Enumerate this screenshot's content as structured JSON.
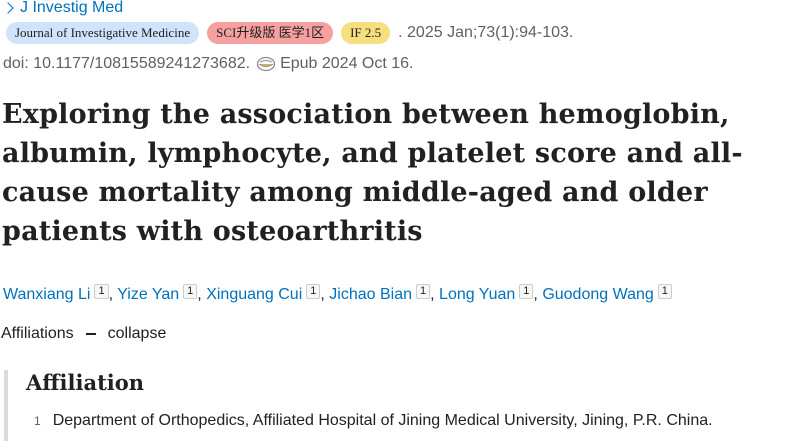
{
  "journal": {
    "short_name": "J Investig Med"
  },
  "badges": {
    "journal_name": "Journal of Investigative Medicine",
    "sci_rank": "SCI升级版 医学1区",
    "impact_factor": "IF 2.5"
  },
  "citation": {
    "date_volume": ". 2025 Jan;73(1):94-103.",
    "doi": "doi: 10.1177/10815589241273682.",
    "epub": "Epub 2024 Oct 16."
  },
  "title": "Exploring the association between hemoglobin, albumin, lymphocyte, and platelet score and all-cause mortality among middle-aged and older patients with osteoarthritis",
  "authors": [
    {
      "name": "Wanxiang Li",
      "aff": "1",
      "sep": ","
    },
    {
      "name": "Yize Yan",
      "aff": "1",
      "sep": ","
    },
    {
      "name": "Xinguang Cui",
      "aff": "1",
      "sep": ","
    },
    {
      "name": "Jichao Bian",
      "aff": "1",
      "sep": ","
    },
    {
      "name": "Long Yuan",
      "aff": "1",
      "sep": ","
    },
    {
      "name": "Guodong Wang",
      "aff": "1",
      "sep": ""
    }
  ],
  "affiliations_toggle": {
    "label": "Affiliations",
    "action": "collapse"
  },
  "affiliation_section": {
    "heading": "Affiliation",
    "items": [
      {
        "num": "1",
        "text": "Department of Orthopedics, Affiliated Hospital of Jining Medical University, Jining, P.R. China."
      }
    ]
  }
}
